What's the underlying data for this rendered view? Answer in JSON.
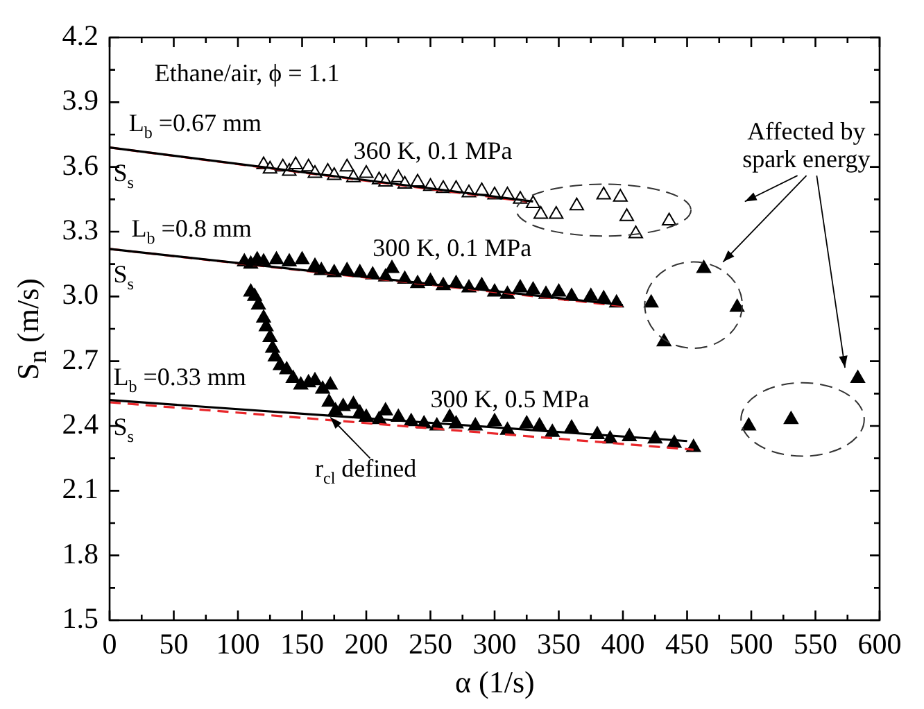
{
  "chart_data": {
    "type": "scatter",
    "xlabel": "α (1/s)",
    "ylabel": "S$_{n}$ (m/s)",
    "xlim": [
      0,
      600
    ],
    "xticks": [
      0,
      50,
      100,
      150,
      200,
      250,
      300,
      350,
      400,
      450,
      500,
      550,
      600
    ],
    "ylim": [
      1.5,
      4.2
    ],
    "yticks": [
      1.5,
      1.8,
      2.1,
      2.4,
      2.7,
      {
        "value": 3,
        "label": "3.0"
      },
      3.3,
      3.6,
      3.9,
      4.2
    ],
    "grid": false,
    "legend": false,
    "series": [
      {
        "color": "#ffffff",
        "marker": "triangle",
        "x": [
          120,
          125,
          135,
          140,
          145,
          155,
          160,
          170,
          175,
          185,
          190,
          200,
          210,
          215,
          225,
          230,
          240,
          250,
          260,
          270,
          280,
          290,
          300,
          310,
          320,
          330,
          336,
          348,
          364,
          385,
          398,
          403,
          410,
          436
        ],
        "values": [
          3.61,
          3.59,
          3.6,
          3.58,
          3.61,
          3.6,
          3.57,
          3.58,
          3.56,
          3.6,
          3.55,
          3.57,
          3.54,
          3.53,
          3.55,
          3.52,
          3.53,
          3.51,
          3.5,
          3.5,
          3.48,
          3.49,
          3.47,
          3.47,
          3.45,
          3.43,
          3.38,
          3.38,
          3.42,
          3.47,
          3.46,
          3.37,
          3.29,
          3.35
        ]
      },
      {
        "color": "#000000",
        "marker": "triangle",
        "x": [
          105,
          110,
          115,
          120,
          130,
          140,
          150,
          160,
          165,
          175,
          185,
          195,
          205,
          215,
          220,
          230,
          240,
          250,
          260,
          270,
          280,
          290,
          300,
          310,
          320,
          330,
          340,
          350,
          360,
          375,
          385,
          395,
          422,
          432,
          463,
          489
        ],
        "values": [
          3.16,
          3.15,
          3.17,
          3.16,
          3.17,
          3.16,
          3.17,
          3.14,
          3.12,
          3.11,
          3.12,
          3.11,
          3.1,
          3.09,
          3.13,
          3.08,
          3.06,
          3.07,
          3.05,
          3.06,
          3.04,
          3.05,
          3.02,
          3.01,
          3.04,
          3.03,
          3.01,
          3.02,
          3.0,
          3.0,
          2.99,
          2.97,
          2.97,
          2.79,
          3.13,
          2.95
        ]
      },
      {
        "color": "#000000",
        "marker": "triangle",
        "x": [
          110,
          113,
          116,
          120,
          122,
          125,
          127,
          129,
          133,
          138,
          143,
          149,
          155,
          160,
          166,
          172,
          171,
          176,
          182,
          190,
          195,
          200,
          210,
          215,
          225,
          235,
          245,
          255,
          265,
          270,
          285,
          300,
          310,
          325,
          335,
          345,
          360,
          380,
          390,
          405,
          425,
          440,
          455,
          498,
          531,
          583
        ],
        "values": [
          3.02,
          3.0,
          2.96,
          2.9,
          2.86,
          2.81,
          2.76,
          2.72,
          2.68,
          2.66,
          2.62,
          2.59,
          2.6,
          2.61,
          2.57,
          2.59,
          2.51,
          2.47,
          2.49,
          2.5,
          2.46,
          2.44,
          2.43,
          2.47,
          2.44,
          2.42,
          2.41,
          2.4,
          2.44,
          2.41,
          2.4,
          2.42,
          2.38,
          2.41,
          2.4,
          2.37,
          2.39,
          2.36,
          2.34,
          2.35,
          2.34,
          2.32,
          2.3,
          2.4,
          2.43,
          2.62
        ]
      },
      {
        "type": "line",
        "color": "#000000",
        "line_style": "solid",
        "x": [
          0,
          330
        ],
        "values": [
          3.69,
          3.44
        ]
      },
      {
        "type": "line",
        "color": "#e8262a",
        "line_style": "dashed",
        "x": [
          0,
          325
        ],
        "values": [
          3.69,
          3.44
        ]
      },
      {
        "type": "line",
        "color": "#000000",
        "line_style": "solid",
        "x": [
          0,
          400
        ],
        "values": [
          3.22,
          2.96
        ]
      },
      {
        "type": "line",
        "color": "#e8262a",
        "line_style": "dashed",
        "x": [
          0,
          400
        ],
        "values": [
          3.22,
          2.955
        ]
      },
      {
        "type": "line",
        "color": "#000000",
        "line_style": "solid",
        "x": [
          0,
          450
        ],
        "values": [
          2.52,
          2.33
        ]
      },
      {
        "type": "line",
        "color": "#e8262a",
        "line_style": "dashed",
        "x": [
          0,
          455
        ],
        "values": [
          2.51,
          2.29
        ]
      }
    ],
    "annotations": [
      "Ethane/air, ϕ = 1.1",
      "L$_{b}$ =0.67 mm",
      "S$_{s}$",
      "360 K, 0.1 MPa",
      "L$_{b}$ =0.8 mm",
      "S$_{s}$",
      "300 K, 0.1 MPa",
      "L$_{b}$ =0.33 mm",
      "S$_{s}$",
      "300 K, 0.5 MPa",
      "r$_{cl}$ defined",
      "Affected by spark energy"
    ]
  }
}
